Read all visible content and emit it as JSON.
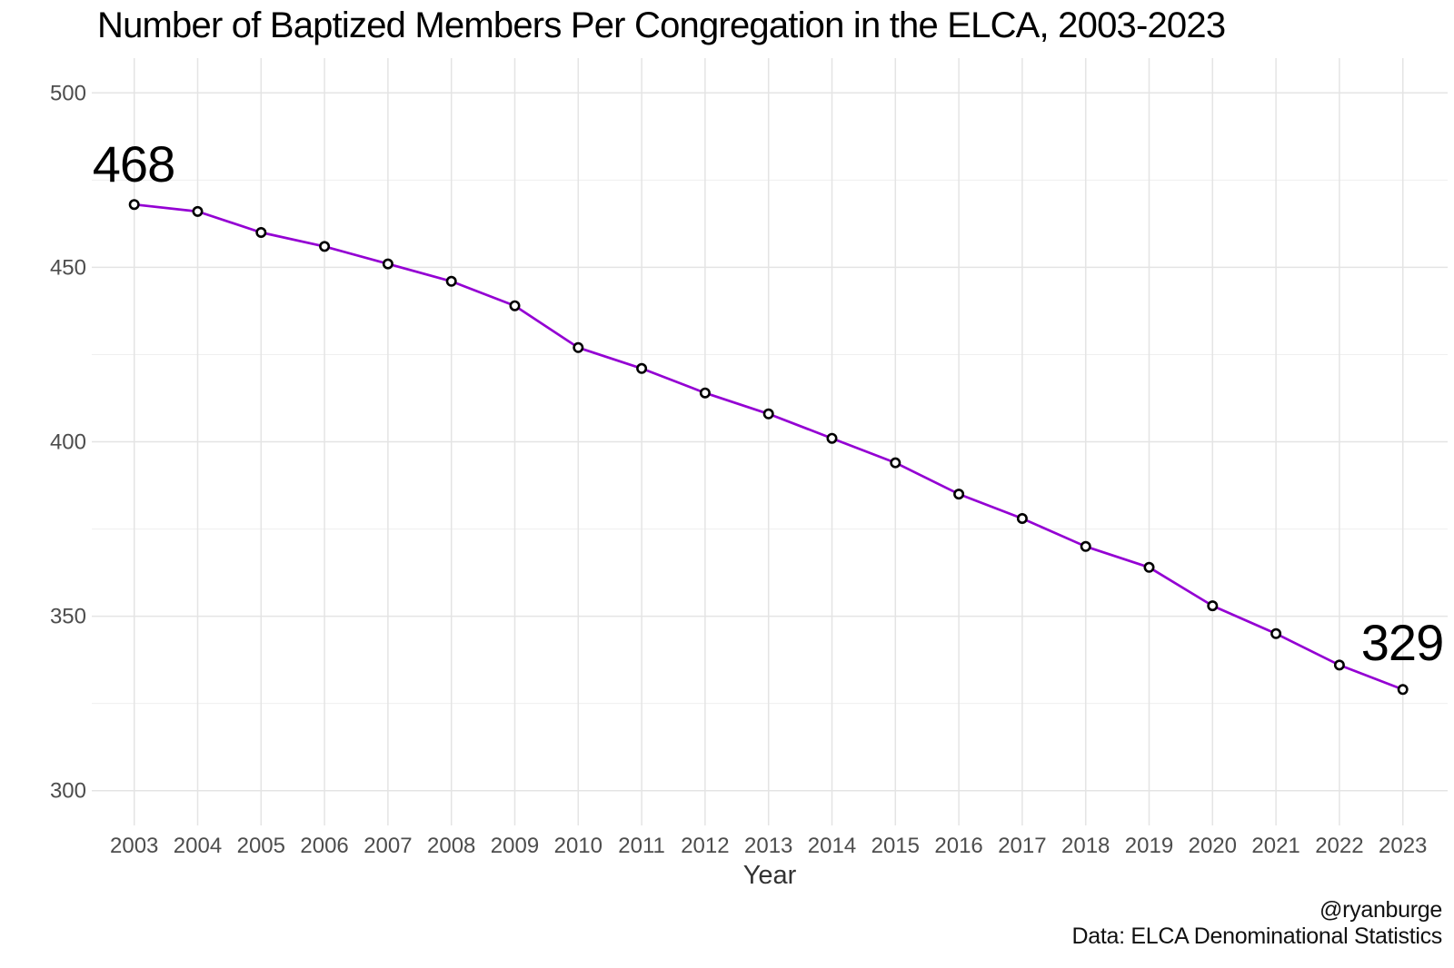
{
  "chart_data": {
    "type": "line",
    "title": "Number of Baptized Members Per Congregation in the ELCA, 2003-2023",
    "xlabel": "Year",
    "ylabel": "",
    "x": [
      2003,
      2004,
      2005,
      2006,
      2007,
      2008,
      2009,
      2010,
      2011,
      2012,
      2013,
      2014,
      2015,
      2016,
      2017,
      2018,
      2019,
      2020,
      2021,
      2022,
      2023
    ],
    "values": [
      468,
      466,
      460,
      456,
      451,
      446,
      439,
      427,
      421,
      414,
      408,
      401,
      394,
      385,
      378,
      370,
      364,
      353,
      345,
      336,
      329
    ],
    "series_name": "Baptized members per congregation",
    "xticks": [
      2003,
      2004,
      2005,
      2006,
      2007,
      2008,
      2009,
      2010,
      2011,
      2012,
      2013,
      2014,
      2015,
      2016,
      2017,
      2018,
      2019,
      2020,
      2021,
      2022,
      2023
    ],
    "yticks": [
      300,
      350,
      400,
      450,
      500
    ],
    "y_minor_ticks": [
      325,
      375,
      425,
      475
    ],
    "ylim": [
      290,
      510
    ],
    "xlim": [
      2002.3,
      2023.7
    ],
    "grid": true,
    "legend": false,
    "annotations": {
      "start": {
        "x": 2003,
        "y": 468,
        "text": "468"
      },
      "end": {
        "x": 2023,
        "y": 329,
        "text": "329"
      }
    },
    "point_style": {
      "shape": "open-circle",
      "fill": "#ffffff",
      "stroke": "#000000"
    },
    "colors": {
      "line": "#9400D3",
      "grid_major": "#E4E4E4",
      "grid_minor": "#EFEFEF",
      "tick_label": "#4D4D4D",
      "axis_title": "#333333",
      "title": "#000000",
      "annotation": "#000000",
      "background": "#FFFFFF"
    }
  },
  "caption": {
    "line1": "@ryanburge",
    "line2": "Data: ELCA Denominational Statistics"
  }
}
